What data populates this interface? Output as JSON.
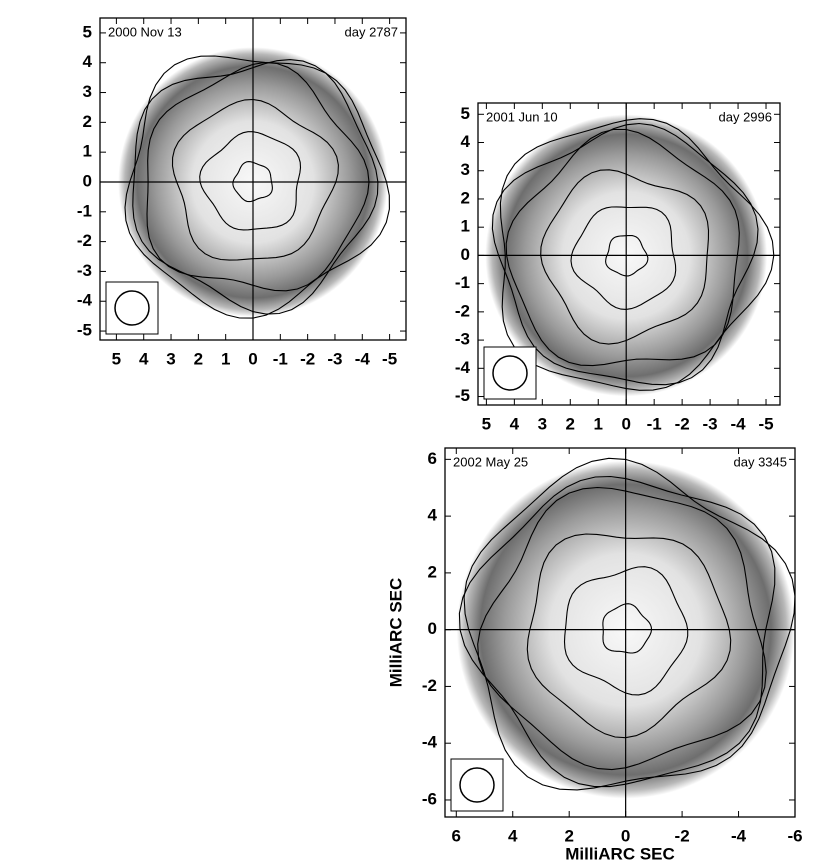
{
  "chart_data": [
    {
      "type": "image",
      "annotations": [
        "2000 Nov 13",
        "day 2787"
      ],
      "xlim": [
        5.6,
        -5.6
      ],
      "ylim": [
        -5.3,
        5.5
      ],
      "xticks": [
        5,
        4,
        3,
        2,
        1,
        0,
        -1,
        -2,
        -3,
        -4,
        -5
      ],
      "yticks": [
        5,
        4,
        3,
        2,
        1,
        0,
        -1,
        -2,
        -3,
        -4,
        -5
      ]
    },
    {
      "type": "image",
      "annotations": [
        "2001 Jun 10",
        "day 2996"
      ],
      "xlim": [
        5.3,
        -5.5
      ],
      "ylim": [
        -5.3,
        5.4
      ],
      "xticks": [
        5,
        4,
        3,
        2,
        1,
        0,
        -1,
        -2,
        -3,
        -4,
        -5
      ],
      "yticks": [
        5,
        4,
        3,
        2,
        1,
        0,
        -1,
        -2,
        -3,
        -4,
        -5
      ]
    },
    {
      "type": "image",
      "annotations": [
        "2002 May 25",
        "day 3345"
      ],
      "xlabel": "MilliARC SEC",
      "ylabel": "MilliARC SEC",
      "xlim": [
        6.4,
        -6.0
      ],
      "ylim": [
        -6.6,
        6.4
      ],
      "xticks": [
        6,
        4,
        2,
        0,
        -2,
        -4,
        -6
      ],
      "yticks": [
        6,
        4,
        2,
        0,
        -2,
        -4,
        -6
      ]
    }
  ]
}
